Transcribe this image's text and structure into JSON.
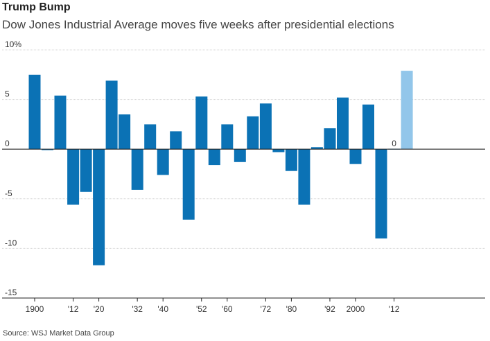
{
  "chart_data": {
    "type": "bar",
    "title": "Trump Bump",
    "subtitle": "Dow Jones Industrial Average moves five weeks after presidential elections",
    "source": "Source: WSJ Market Data Group",
    "xlabel": "",
    "ylabel": "",
    "ylim": [
      -15,
      10
    ],
    "yticks": [
      {
        "value": 10,
        "label": "10%"
      },
      {
        "value": 5,
        "label": "5"
      },
      {
        "value": 0,
        "label": "0"
      },
      {
        "value": -5,
        "label": "-5"
      },
      {
        "value": -10,
        "label": "-10"
      },
      {
        "value": -15,
        "label": "-15"
      }
    ],
    "xtick_labels": [
      {
        "index": 0,
        "label": "1900"
      },
      {
        "index": 3,
        "label": "'12"
      },
      {
        "index": 5,
        "label": "'20"
      },
      {
        "index": 8,
        "label": "'32"
      },
      {
        "index": 10,
        "label": "'40"
      },
      {
        "index": 13,
        "label": "'52"
      },
      {
        "index": 15,
        "label": "'60"
      },
      {
        "index": 18,
        "label": "'72"
      },
      {
        "index": 20,
        "label": "'80"
      },
      {
        "index": 23,
        "label": "'92"
      },
      {
        "index": 25,
        "label": "2000"
      },
      {
        "index": 28,
        "label": "'12"
      }
    ],
    "categories": [
      "1900",
      "1904",
      "1908",
      "1912",
      "1916",
      "1920",
      "1924",
      "1928",
      "1932",
      "1936",
      "1940",
      "1944",
      "1948",
      "1952",
      "1956",
      "1960",
      "1964",
      "1968",
      "1972",
      "1976",
      "1980",
      "1984",
      "1988",
      "1992",
      "1996",
      "2000",
      "2004",
      "2008",
      "2012",
      "2016"
    ],
    "values": [
      7.5,
      -0.1,
      5.4,
      -5.6,
      -4.3,
      -11.7,
      6.9,
      3.5,
      -4.1,
      2.5,
      -2.6,
      1.8,
      -7.1,
      5.3,
      -1.6,
      2.5,
      -1.3,
      3.3,
      4.6,
      -0.3,
      -2.2,
      -5.6,
      0.2,
      2.1,
      5.2,
      -1.5,
      4.5,
      -9.0,
      0.0,
      7.9
    ],
    "highlight_index": 29,
    "colors": {
      "bar": "#0b72b5",
      "highlight": "#92c6ea",
      "grid": "#d4d4d4",
      "axis": "#222222"
    },
    "annotations": [
      {
        "index": 28,
        "label": "0"
      }
    ]
  }
}
